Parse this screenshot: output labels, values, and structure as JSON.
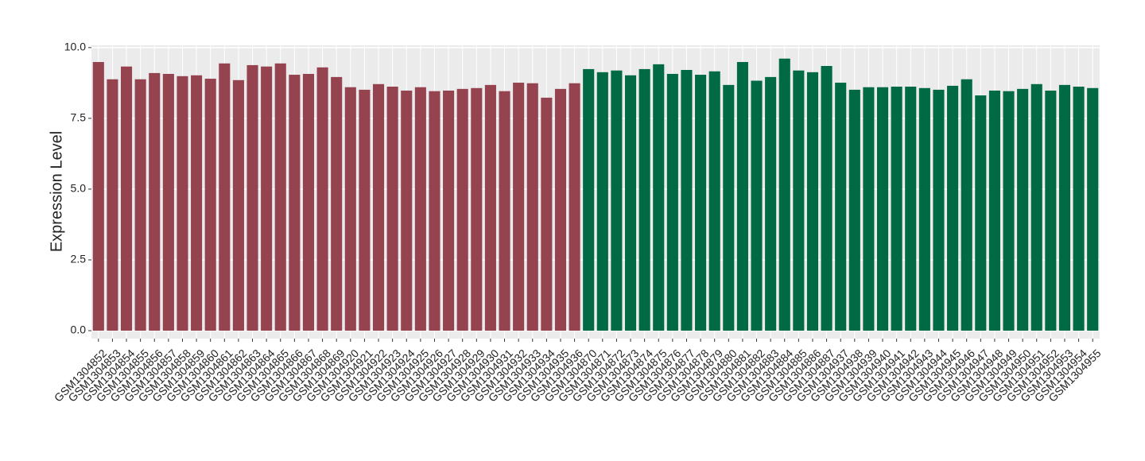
{
  "chart_data": {
    "type": "bar",
    "y_label": "Expression Level",
    "categories": [
      "GSM1304852",
      "GSM1304853",
      "GSM1304854",
      "GSM1304855",
      "GSM1304856",
      "GSM1304857",
      "GSM1304858",
      "GSM1304859",
      "GSM1304860",
      "GSM1304861",
      "GSM1304862",
      "GSM1304863",
      "GSM1304864",
      "GSM1304865",
      "GSM1304866",
      "GSM1304867",
      "GSM1304868",
      "GSM1304869",
      "GSM1304920",
      "GSM1304921",
      "GSM1304922",
      "GSM1304923",
      "GSM1304924",
      "GSM1304925",
      "GSM1304926",
      "GSM1304927",
      "GSM1304928",
      "GSM1304929",
      "GSM1304930",
      "GSM1304931",
      "GSM1304932",
      "GSM1304933",
      "GSM1304934",
      "GSM1304935",
      "GSM1304936",
      "GSM1304870",
      "GSM1304871",
      "GSM1304872",
      "GSM1304873",
      "GSM1304874",
      "GSM1304875",
      "GSM1304876",
      "GSM1304877",
      "GSM1304878",
      "GSM1304879",
      "GSM1304880",
      "GSM1304881",
      "GSM1304882",
      "GSM1304883",
      "GSM1304884",
      "GSM1304885",
      "GSM1304886",
      "GSM1304887",
      "GSM1304937",
      "GSM1304938",
      "GSM1304939",
      "GSM1304940",
      "GSM1304941",
      "GSM1304942",
      "GSM1304943",
      "GSM1304944",
      "GSM1304945",
      "GSM1304946",
      "GSM1304947",
      "GSM1304948",
      "GSM1304949",
      "GSM1304950",
      "GSM1304951",
      "GSM1304952",
      "GSM1304953",
      "GSM1304954",
      "GSM1304955"
    ],
    "values": [
      9.49,
      8.88,
      9.33,
      8.88,
      9.1,
      9.07,
      8.99,
      9.02,
      8.9,
      9.44,
      8.85,
      9.38,
      9.33,
      9.44,
      9.04,
      9.07,
      9.3,
      8.96,
      8.6,
      8.51,
      8.71,
      8.62,
      8.48,
      8.6,
      8.46,
      8.48,
      8.54,
      8.57,
      8.68,
      8.46,
      8.76,
      8.74,
      8.23,
      8.54,
      8.74,
      9.24,
      9.13,
      9.19,
      9.02,
      9.24,
      9.41,
      9.07,
      9.21,
      9.04,
      9.16,
      8.68,
      9.49,
      8.83,
      8.96,
      9.61,
      9.19,
      9.13,
      9.35,
      8.76,
      8.51,
      8.6,
      8.6,
      8.62,
      8.62,
      8.57,
      8.51,
      8.65,
      8.88,
      8.31,
      8.48,
      8.46,
      8.54,
      8.71,
      8.48,
      8.68,
      8.62,
      8.57
    ],
    "colors": [
      "#964350",
      "#964350",
      "#964350",
      "#964350",
      "#964350",
      "#964350",
      "#964350",
      "#964350",
      "#964350",
      "#964350",
      "#964350",
      "#964350",
      "#964350",
      "#964350",
      "#964350",
      "#964350",
      "#964350",
      "#964350",
      "#964350",
      "#964350",
      "#964350",
      "#964350",
      "#964350",
      "#964350",
      "#964350",
      "#964350",
      "#964350",
      "#964350",
      "#964350",
      "#964350",
      "#964350",
      "#964350",
      "#964350",
      "#964350",
      "#964350",
      "#006a44",
      "#006a44",
      "#006a44",
      "#006a44",
      "#006a44",
      "#006a44",
      "#006a44",
      "#006a44",
      "#006a44",
      "#006a44",
      "#006a44",
      "#006a44",
      "#006a44",
      "#006a44",
      "#006a44",
      "#006a44",
      "#006a44",
      "#006a44",
      "#006a44",
      "#006a44",
      "#006a44",
      "#006a44",
      "#006a44",
      "#006a44",
      "#006a44",
      "#006a44",
      "#006a44",
      "#006a44",
      "#006a44",
      "#006a44",
      "#006a44",
      "#006a44",
      "#006a44",
      "#006a44",
      "#006a44",
      "#006a44",
      "#006a44"
    ],
    "ylim": [
      -0.28,
      10.08
    ],
    "yticks": [
      {
        "value": 0,
        "label": "0.0"
      },
      {
        "value": 2.5,
        "label": "2.5"
      },
      {
        "value": 5,
        "label": "5.0"
      },
      {
        "value": 7.5,
        "label": "7.5"
      },
      {
        "value": 10,
        "label": "10.0"
      }
    ],
    "grid": true
  }
}
